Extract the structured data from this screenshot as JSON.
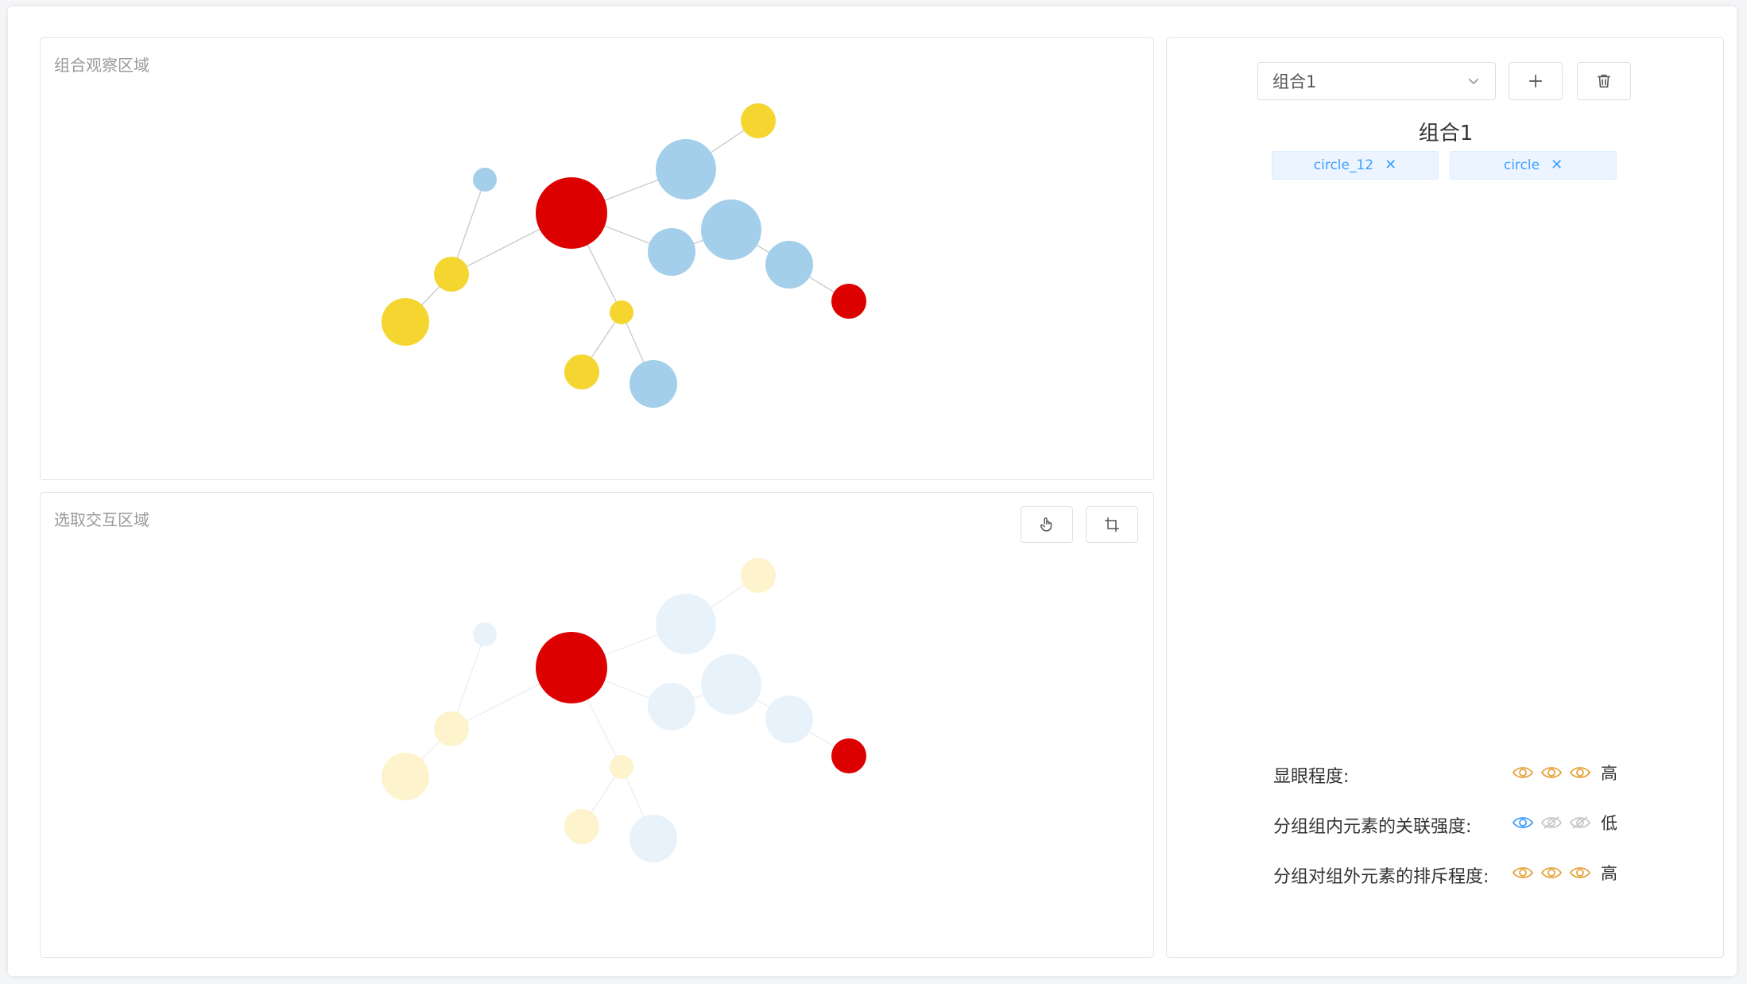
{
  "observe_panel": {
    "title": "组合观察区域"
  },
  "select_panel": {
    "title": "选取交互区域",
    "tools": [
      "hand-icon",
      "crop-icon"
    ]
  },
  "colors": {
    "red": "#dd0000",
    "blue": "#a3cfea",
    "yellow": "#f5d52f",
    "edge": "#cccccc",
    "eye_active": "#e6a23c",
    "eye_blue": "#409eff",
    "eye_off": "#c8c8c8"
  },
  "graph": {
    "nodes": [
      {
        "id": "n1",
        "color": "red"
      },
      {
        "id": "n2",
        "color": "blue"
      },
      {
        "id": "n3",
        "color": "yellow"
      },
      {
        "id": "n4",
        "color": "yellow"
      },
      {
        "id": "n5",
        "color": "blue"
      },
      {
        "id": "n6",
        "color": "yellow"
      },
      {
        "id": "n7",
        "color": "blue"
      },
      {
        "id": "n8",
        "color": "blue"
      },
      {
        "id": "n9",
        "color": "blue"
      },
      {
        "id": "n10",
        "color": "red"
      },
      {
        "id": "n11",
        "color": "yellow"
      },
      {
        "id": "n12",
        "color": "yellow"
      },
      {
        "id": "n13",
        "color": "blue"
      }
    ],
    "edges": [
      [
        "n1",
        "n5"
      ],
      [
        "n5",
        "n6"
      ],
      [
        "n1",
        "n7"
      ],
      [
        "n7",
        "n8"
      ],
      [
        "n8",
        "n9"
      ],
      [
        "n9",
        "n10"
      ],
      [
        "n1",
        "n3"
      ],
      [
        "n3",
        "n2"
      ],
      [
        "n3",
        "n4"
      ],
      [
        "n1",
        "n11"
      ],
      [
        "n11",
        "n12"
      ],
      [
        "n11",
        "n13"
      ]
    ],
    "selected": [
      "n1",
      "n10"
    ]
  },
  "side_panel": {
    "select_value": "组合1",
    "group_title": "组合1",
    "tags": [
      "circle_12",
      "circle"
    ],
    "ratings": [
      {
        "label": "显眼程度:",
        "level": "高",
        "icons": [
          "active",
          "active",
          "active"
        ]
      },
      {
        "label": "分组组内元素的关联强度:",
        "level": "低",
        "icons": [
          "blue",
          "off",
          "off"
        ]
      },
      {
        "label": "分组对组外元素的排斥程度:",
        "level": "高",
        "icons": [
          "active",
          "active",
          "active"
        ]
      }
    ]
  }
}
